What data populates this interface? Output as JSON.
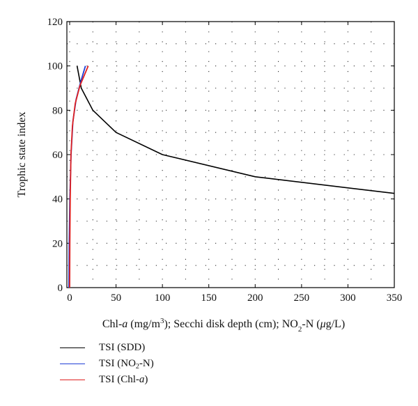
{
  "chart_data": {
    "type": "line",
    "title": "",
    "ylabel": "Trophic state index",
    "xlabel": {
      "parts": [
        {
          "t": "Chl-",
          "s": "normal"
        },
        {
          "t": "a",
          "s": "italic"
        },
        {
          "t": " (mg/m",
          "s": "normal"
        },
        {
          "t": "3",
          "s": "sup"
        },
        {
          "t": "); Secchi disk depth (cm); NO",
          "s": "normal"
        },
        {
          "t": "2",
          "s": "sub"
        },
        {
          "t": "-N (",
          "s": "normal"
        },
        {
          "t": "μ",
          "s": "italic"
        },
        {
          "t": "g/L)",
          "s": "normal"
        }
      ]
    },
    "xlim": [
      -3,
      350
    ],
    "ylim": [
      0,
      120
    ],
    "xticks": [
      0,
      50,
      100,
      150,
      200,
      250,
      300,
      350
    ],
    "yticks": [
      0,
      20,
      40,
      60,
      80,
      100,
      120
    ],
    "xtick_labels": [
      "0",
      "50",
      "100",
      "150",
      "200",
      "250",
      "300",
      "350"
    ],
    "ytick_labels": [
      "0",
      "20",
      "40",
      "60",
      "80",
      "100",
      "120"
    ],
    "grid": true,
    "legend_position": "below",
    "series": [
      {
        "name": "TSI (SDD)",
        "legend": [
          {
            "t": "TSI (SDD)",
            "s": "normal"
          }
        ],
        "color": "#000000",
        "x": [
          8,
          12.5,
          25,
          50,
          100,
          200,
          350
        ],
        "y": [
          100,
          90,
          80,
          70,
          60,
          50,
          42.5
        ]
      },
      {
        "name": "TSI (NO2-N)",
        "legend": [
          {
            "t": "TSI (NO",
            "s": "normal"
          },
          {
            "t": "2",
            "s": "sub"
          },
          {
            "t": "-N)",
            "s": "normal"
          }
        ],
        "color": "#1f3fd6",
        "x": [
          -0.8,
          -0.5,
          0.2,
          1.5,
          3.5,
          7,
          12,
          17
        ],
        "y": [
          0,
          20,
          40,
          60,
          75,
          85,
          93,
          100
        ]
      },
      {
        "name": "TSI (Chl-a)",
        "legend": [
          {
            "t": "TSI (Chl-",
            "s": "normal"
          },
          {
            "t": "a",
            "s": "italic"
          },
          {
            "t": ")",
            "s": "normal"
          }
        ],
        "color": "#e02020",
        "x": [
          0,
          0.2,
          0.6,
          1.4,
          3,
          6,
          11,
          16,
          20
        ],
        "y": [
          0,
          20,
          40,
          60,
          73,
          83,
          91,
          96,
          100
        ]
      }
    ]
  }
}
